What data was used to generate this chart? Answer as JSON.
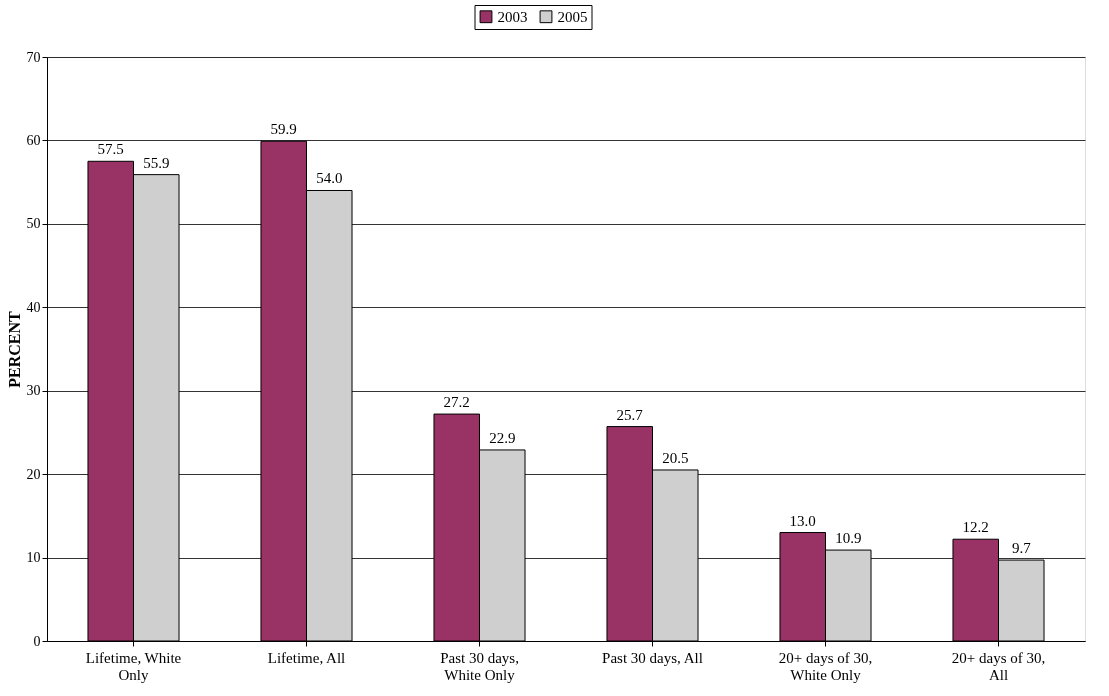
{
  "chart_data": {
    "type": "bar",
    "ylabel": "PERCENT",
    "categories": [
      "Lifetime, White Only",
      "Lifetime, All",
      "Past 30 days, White Only",
      "Past 30 days, All",
      "20+ days of 30, White Only",
      "20+ days of 30, All"
    ],
    "series": [
      {
        "name": "2003",
        "color": "#993366",
        "values": [
          57.5,
          59.9,
          27.2,
          25.7,
          13.0,
          12.2
        ],
        "value_labels": [
          "57.5",
          "59.9",
          "27.2",
          "25.7",
          "13.0",
          "12.2"
        ]
      },
      {
        "name": "2005",
        "color": "#cfcfcf",
        "values": [
          55.9,
          54.0,
          22.9,
          20.5,
          10.9,
          9.7
        ],
        "value_labels": [
          "55.9",
          "54.0",
          "22.9",
          "20.5",
          "10.9",
          "9.7"
        ]
      }
    ],
    "ylim": [
      0,
      70
    ],
    "yticks": [
      0,
      10,
      20,
      30,
      40,
      50,
      60,
      70
    ],
    "grid": "y",
    "legend": "top"
  }
}
